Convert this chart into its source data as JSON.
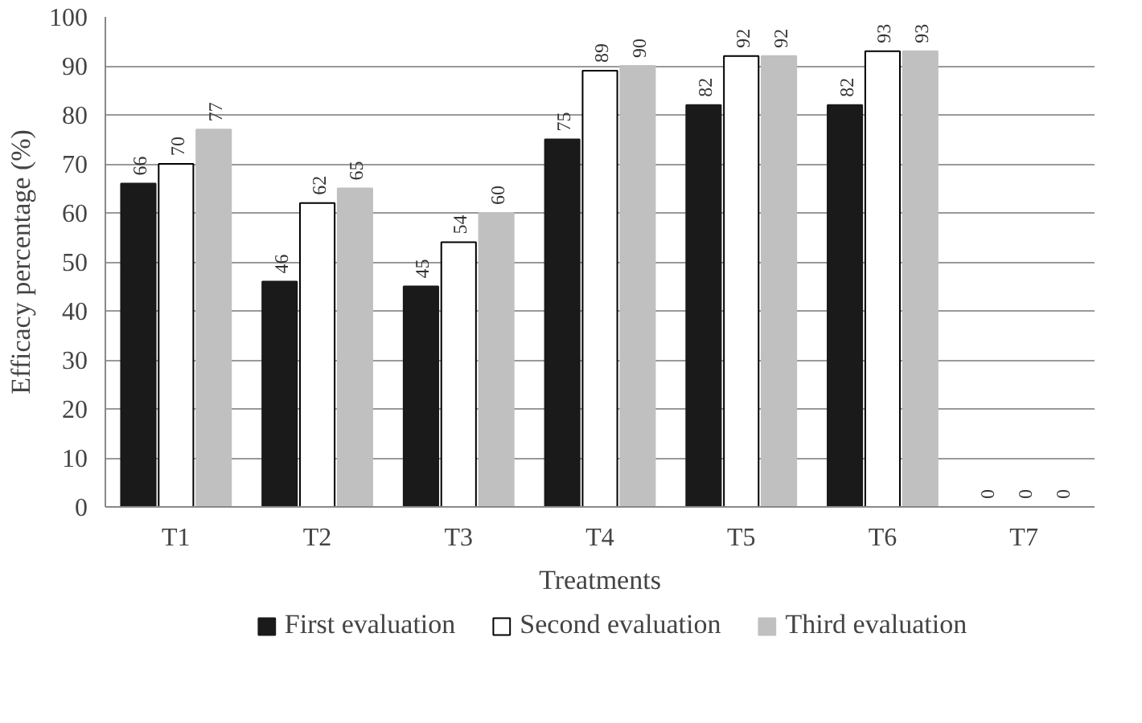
{
  "chart_data": {
    "type": "bar",
    "xlabel": "Treatments",
    "ylabel": "Efficacy percentage (%)",
    "categories": [
      "T1",
      "T2",
      "T3",
      "T4",
      "T5",
      "T6",
      "T7"
    ],
    "series": [
      {
        "name": "First evaluation",
        "color": "#1a1a1a",
        "values": [
          66,
          46,
          45,
          75,
          82,
          82,
          0
        ]
      },
      {
        "name": "Second evaluation",
        "color": "#ffffff",
        "values": [
          70,
          62,
          54,
          89,
          92,
          93,
          0
        ]
      },
      {
        "name": "Third evaluation",
        "color": "#c0c0c0",
        "values": [
          77,
          65,
          60,
          90,
          92,
          93,
          0
        ]
      }
    ],
    "ylim": [
      0,
      100
    ],
    "yticks": [
      0,
      10,
      20,
      30,
      40,
      50,
      60,
      70,
      80,
      90,
      100
    ],
    "grid": "y",
    "legend": "bottom",
    "data_labels": true
  }
}
